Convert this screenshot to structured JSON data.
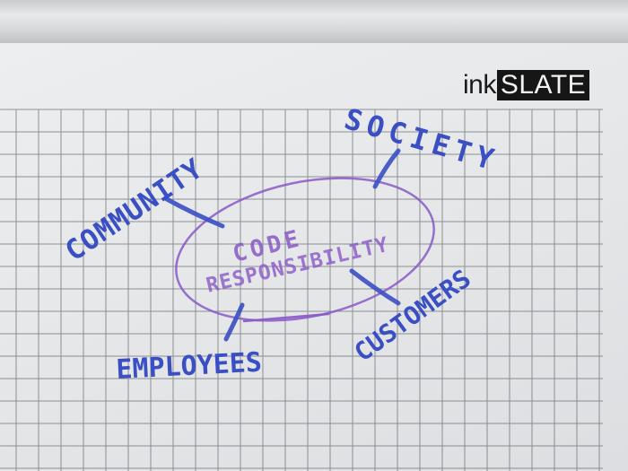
{
  "brand": {
    "prefix": "ink",
    "suffix": "SLATE"
  },
  "diagram": {
    "center_label_line1": "CODE",
    "center_label_line2": "RESPONSIBILITY",
    "nodes": {
      "community": "COMMUNITY",
      "society": "SOCIETY",
      "employees": "EMPLOYEES",
      "customers": "CUSTOMERS"
    }
  },
  "colors": {
    "blue_marker": "#3a4fc4",
    "purple_marker": "#8a58c8",
    "grid_line": "#6f7175",
    "board": "#e6e7e9",
    "frame": "#cfd1d4"
  }
}
